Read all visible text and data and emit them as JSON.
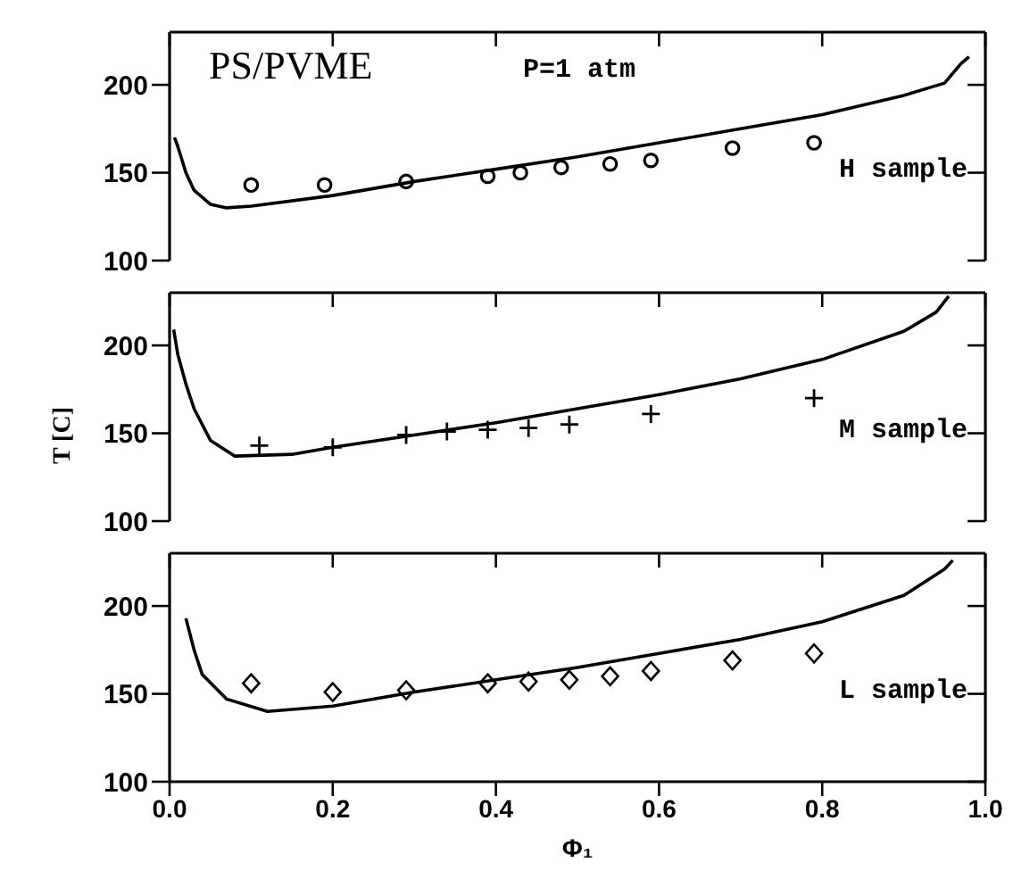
{
  "chart_data": [
    {
      "type": "line",
      "annotations": [
        "PS/PVME",
        "P=1 atm",
        "H sample"
      ],
      "xlim": [
        0,
        1
      ],
      "xticks": [
        0,
        0.2,
        0.4,
        0.6,
        0.8,
        1
      ],
      "ylim": [
        100,
        230
      ],
      "yticks": [
        100,
        150,
        200
      ],
      "tick_labels": "y",
      "series": [
        {
          "type": "line",
          "color": "#000000",
          "x": [
            0.006,
            0.01,
            0.02,
            0.03,
            0.05,
            0.07,
            0.1,
            0.2,
            0.3,
            0.4,
            0.5,
            0.6,
            0.7,
            0.8,
            0.9,
            0.95,
            0.97,
            0.98
          ],
          "values": [
            170,
            165,
            150,
            140,
            132,
            130,
            131,
            137,
            145,
            152,
            159,
            167,
            175,
            183,
            194,
            201,
            212,
            216
          ]
        },
        {
          "type": "scatter",
          "color": "#000000",
          "marker": "circle",
          "x": [
            0.1,
            0.19,
            0.29,
            0.39,
            0.43,
            0.48,
            0.54,
            0.59,
            0.69,
            0.79
          ],
          "values": [
            143,
            143,
            145,
            148,
            150,
            153,
            155,
            157,
            164,
            167
          ]
        }
      ]
    },
    {
      "type": "line",
      "annotations": [
        "M sample"
      ],
      "ylabel": "T [C]",
      "xlim": [
        0,
        1
      ],
      "xticks": [
        0,
        0.2,
        0.4,
        0.6,
        0.8,
        1
      ],
      "ylim": [
        100,
        230
      ],
      "yticks": [
        100,
        150,
        200
      ],
      "tick_labels": "y",
      "series": [
        {
          "type": "line",
          "color": "#000000",
          "x": [
            0.005,
            0.01,
            0.02,
            0.03,
            0.05,
            0.08,
            0.15,
            0.2,
            0.3,
            0.4,
            0.5,
            0.6,
            0.7,
            0.8,
            0.9,
            0.94,
            0.955
          ],
          "values": [
            209,
            195,
            178,
            164,
            146,
            137,
            138,
            142,
            149,
            156,
            164,
            172,
            181,
            192,
            208,
            219,
            228
          ]
        },
        {
          "type": "scatter",
          "color": "#000000",
          "marker": "cross",
          "x": [
            0.11,
            0.2,
            0.29,
            0.34,
            0.39,
            0.44,
            0.49,
            0.59,
            0.79
          ],
          "values": [
            143,
            142,
            149,
            151,
            152,
            153,
            155,
            161,
            170
          ]
        }
      ]
    },
    {
      "type": "line",
      "annotations": [
        "L sample"
      ],
      "xlabel": "Φ₁",
      "xlim": [
        0,
        1
      ],
      "xticks": [
        {
          "value": 0,
          "label": "0.0"
        },
        {
          "value": 0.2,
          "label": "0.2"
        },
        {
          "value": 0.4,
          "label": "0.4"
        },
        {
          "value": 0.6,
          "label": "0.6"
        },
        {
          "value": 0.8,
          "label": "0.8"
        },
        {
          "value": 1,
          "label": "1.0"
        }
      ],
      "ylim": [
        100,
        230
      ],
      "yticks": [
        100,
        150,
        200
      ],
      "series": [
        {
          "type": "line",
          "color": "#000000",
          "x": [
            0.02,
            0.03,
            0.04,
            0.07,
            0.12,
            0.2,
            0.3,
            0.4,
            0.5,
            0.6,
            0.7,
            0.8,
            0.9,
            0.95,
            0.96
          ],
          "values": [
            193,
            175,
            161,
            147,
            140,
            143,
            151,
            158,
            165,
            173,
            181,
            191,
            206,
            221,
            226
          ]
        },
        {
          "type": "scatter",
          "color": "#000000",
          "marker": "diamond",
          "x": [
            0.1,
            0.2,
            0.29,
            0.39,
            0.44,
            0.49,
            0.54,
            0.59,
            0.69,
            0.79
          ],
          "values": [
            156,
            151,
            152,
            156,
            157,
            158,
            160,
            163,
            169,
            173
          ]
        }
      ]
    }
  ]
}
